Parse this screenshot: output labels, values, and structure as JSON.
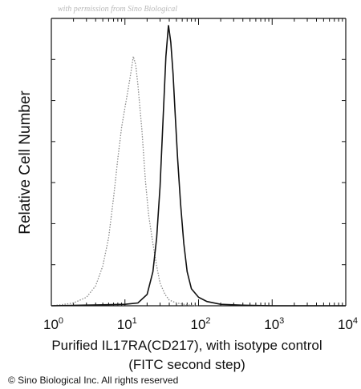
{
  "watermark": "with permission from Sino Biological",
  "copyright": "© Sino Biological Inc. All rights reserved",
  "chart_data": {
    "type": "line",
    "title": "",
    "xlabel_line1": "Purified  IL17RA(CD217), with isotype control",
    "xlabel_line2": "(FITC second step)",
    "ylabel": "Relative Cell Number",
    "x_scale": "log",
    "xlim": [
      1,
      10000
    ],
    "ylim": [
      0,
      100
    ],
    "grid": false,
    "x_ticks": [
      {
        "base": "10",
        "exp": "0",
        "value": 1
      },
      {
        "base": "10",
        "exp": "1",
        "value": 10
      },
      {
        "base": "10",
        "exp": "2",
        "value": 100
      },
      {
        "base": "10",
        "exp": "3",
        "value": 1000
      },
      {
        "base": "10",
        "exp": "4",
        "value": 10000
      }
    ],
    "series": [
      {
        "style": "dotted-gray",
        "x": [
          1,
          1.5,
          2,
          3,
          4,
          5,
          6,
          7,
          8,
          9,
          10,
          11,
          12,
          13,
          14,
          15,
          17,
          19,
          21,
          24,
          27,
          30,
          35,
          40,
          50,
          70,
          100
        ],
        "y": [
          0,
          0.5,
          1,
          3,
          7,
          14,
          24,
          38,
          52,
          63,
          70,
          76,
          82,
          88,
          85,
          78,
          62,
          44,
          32,
          22,
          14,
          8,
          4,
          2,
          1,
          0.3,
          0
        ]
      },
      {
        "style": "solid-black",
        "x": [
          1,
          10,
          15,
          20,
          24,
          27,
          30,
          33,
          36,
          39,
          42,
          45,
          48,
          52,
          57,
          63,
          70,
          80,
          100,
          130,
          200,
          400,
          1000,
          10000
        ],
        "y": [
          0,
          0.5,
          1,
          4,
          12,
          24,
          42,
          66,
          88,
          99,
          93,
          82,
          68,
          52,
          36,
          22,
          12,
          6,
          3,
          1.5,
          0.5,
          0.2,
          0,
          0
        ]
      }
    ]
  }
}
